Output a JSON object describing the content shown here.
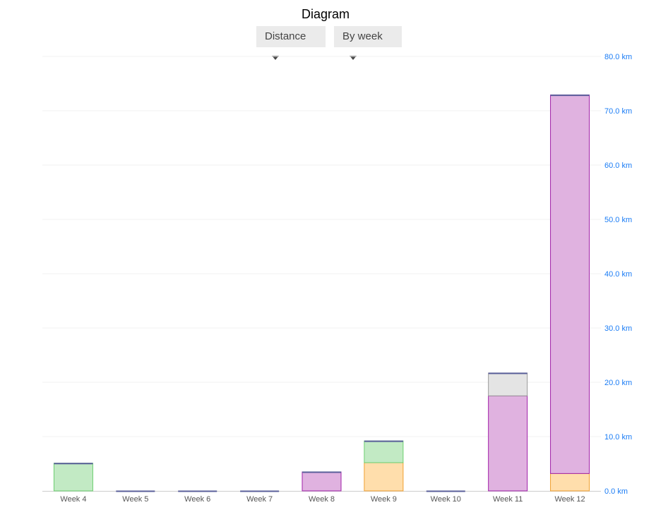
{
  "header": {
    "title": "Diagram",
    "metric_select": "Distance",
    "period_select": "By week"
  },
  "chart_data": {
    "type": "bar",
    "stacked": true,
    "categories": [
      "Week 4",
      "Week 5",
      "Week 6",
      "Week 7",
      "Week 8",
      "Week 9",
      "Week 10",
      "Week 11",
      "Week 12"
    ],
    "series": [
      {
        "color": "#ffdeac",
        "stroke": "#f0a030",
        "values": [
          0,
          0,
          0,
          0,
          0,
          5.2,
          0,
          0,
          3.2
        ]
      },
      {
        "color": "#c2eac4",
        "stroke": "#6ccf70",
        "values": [
          5.1,
          0,
          0,
          0,
          0,
          4.0,
          0,
          0,
          0
        ]
      },
      {
        "color": "#e0b2e0",
        "stroke": "#a020a8",
        "values": [
          0,
          0,
          0,
          0,
          3.5,
          0,
          0,
          17.5,
          69.7
        ]
      },
      {
        "color": "#e4e4e4",
        "stroke": "#999999",
        "values": [
          0,
          0,
          0,
          0,
          0,
          0,
          0,
          4.2,
          0
        ]
      }
    ],
    "top_line_color": "#5a5f9a",
    "ylim": [
      0,
      80
    ],
    "yticks": [
      "0.0 km",
      "10.0 km",
      "20.0 km",
      "30.0 km",
      "40.0 km",
      "50.0 km",
      "60.0 km",
      "70.0 km",
      "80.0 km"
    ],
    "y_axis_position": "right",
    "tick_label_color": "#1a7cf5",
    "grid": true
  }
}
